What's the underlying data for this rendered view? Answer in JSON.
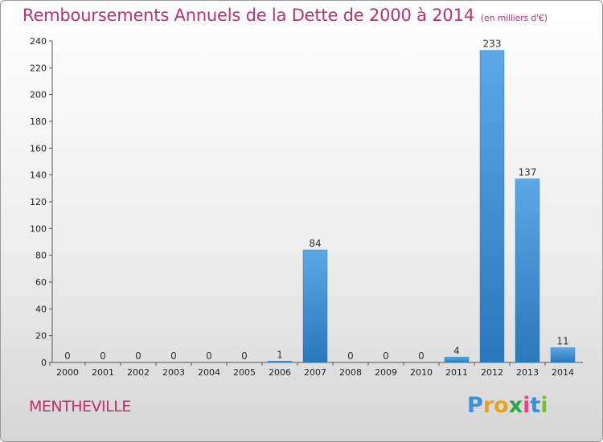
{
  "title": "Remboursements Annuels de la Dette de 2000 à 2014",
  "subtitle": "(en milliers d'€)",
  "commune": "MENTHEVILLE",
  "logo": {
    "letters": [
      "P",
      "r",
      "o",
      "x",
      "i",
      "t",
      "i"
    ],
    "colors": [
      "#3a8fd6",
      "#e8a21c",
      "#e8a21c",
      "#2aa84a",
      "#e54c87",
      "#3a8fd6",
      "#7cbf2a"
    ]
  },
  "colors": {
    "bar_light": "#5aa8e6",
    "bar_dark": "#2a78bc",
    "title": "#c0306e"
  },
  "chart_data": {
    "type": "bar",
    "title": "Remboursements Annuels de la Dette de 2000 à 2014",
    "subtitle": "(en milliers d'€)",
    "categories": [
      "2000",
      "2001",
      "2002",
      "2003",
      "2004",
      "2005",
      "2006",
      "2007",
      "2008",
      "2009",
      "2010",
      "2011",
      "2012",
      "2013",
      "2014"
    ],
    "values": [
      0,
      0,
      0,
      0,
      0,
      0,
      1,
      84,
      0,
      0,
      0,
      4,
      233,
      137,
      11
    ],
    "value_labels": [
      "0",
      "0",
      "0",
      "0",
      "0",
      "0",
      "1",
      "84",
      "0",
      "0",
      "0",
      "4",
      "233",
      "137",
      "11"
    ],
    "ylim": [
      0,
      240
    ],
    "yticks": [
      0,
      20,
      40,
      60,
      80,
      100,
      120,
      140,
      160,
      180,
      200,
      220,
      240
    ],
    "grid": false,
    "xlabel": "",
    "ylabel": ""
  }
}
